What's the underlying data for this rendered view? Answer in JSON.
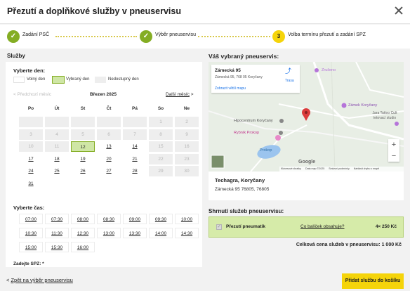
{
  "modal": {
    "title": "Přezutí a doplňkové služby v pneuservisu"
  },
  "steps": [
    {
      "number": "✓",
      "label": "Zadání PSČ",
      "state": "done"
    },
    {
      "number": "✓",
      "label": "Výběr pneuservisu",
      "state": "done"
    },
    {
      "number": "3",
      "label": "Volba termínu přezutí a zadání SPZ",
      "state": "current"
    }
  ],
  "services": {
    "title": "Služby",
    "day_label": "Vyberte den:",
    "legend": {
      "free": "Volný den",
      "selected": "Vybraný den",
      "unavailable": "Nedostupný den"
    },
    "calendar": {
      "prev": "Předchozí měsíc",
      "month": "Březen 2025",
      "next": "Další měsíc",
      "weekdays": [
        "Po",
        "Út",
        "St",
        "Čt",
        "Pá",
        "So",
        "Ne"
      ],
      "weeks": [
        [
          {
            "d": "",
            "s": "dis"
          },
          {
            "d": "",
            "s": "dis"
          },
          {
            "d": "",
            "s": "dis"
          },
          {
            "d": "",
            "s": "dis"
          },
          {
            "d": "",
            "s": "dis"
          },
          {
            "d": "1",
            "s": "dis"
          },
          {
            "d": "2",
            "s": "dis"
          }
        ],
        [
          {
            "d": "3",
            "s": "dis"
          },
          {
            "d": "4",
            "s": "dis"
          },
          {
            "d": "5",
            "s": "dis"
          },
          {
            "d": "6",
            "s": "dis"
          },
          {
            "d": "7",
            "s": "dis"
          },
          {
            "d": "8",
            "s": "dis"
          },
          {
            "d": "9",
            "s": "dis"
          }
        ],
        [
          {
            "d": "10",
            "s": "dis"
          },
          {
            "d": "11",
            "s": "dis"
          },
          {
            "d": "12",
            "s": "sel"
          },
          {
            "d": "13",
            "s": "ok"
          },
          {
            "d": "14",
            "s": "ok"
          },
          {
            "d": "15",
            "s": "dis"
          },
          {
            "d": "16",
            "s": "dis"
          }
        ],
        [
          {
            "d": "17",
            "s": "ok"
          },
          {
            "d": "18",
            "s": "ok"
          },
          {
            "d": "19",
            "s": "ok"
          },
          {
            "d": "20",
            "s": "ok"
          },
          {
            "d": "21",
            "s": "ok"
          },
          {
            "d": "22",
            "s": "dis"
          },
          {
            "d": "23",
            "s": "dis"
          }
        ],
        [
          {
            "d": "24",
            "s": "ok"
          },
          {
            "d": "25",
            "s": "ok"
          },
          {
            "d": "26",
            "s": "ok"
          },
          {
            "d": "27",
            "s": "ok"
          },
          {
            "d": "28",
            "s": "ok"
          },
          {
            "d": "29",
            "s": "dis"
          },
          {
            "d": "30",
            "s": "dis"
          }
        ],
        [
          {
            "d": "31",
            "s": "ok"
          }
        ]
      ]
    },
    "time_label": "Vyberte čas:",
    "times": [
      "07:00",
      "07:30",
      "08:00",
      "08:30",
      "09:00",
      "09:30",
      "10:00",
      "10:30",
      "11:30",
      "12:30",
      "13:00",
      "13:30",
      "14:00",
      "14:30",
      "15:00",
      "15:30",
      "16:00"
    ],
    "spz_label": "Zadejte SPZ: *"
  },
  "selected_service": {
    "title": "Váš vybraný pneuservis:",
    "map": {
      "popup_name": "Zámecká 95",
      "popup_address": "Zámecká 95, 768 05 Koryčany",
      "popup_link": "Zobrazit větší mapu",
      "route": "Trasa",
      "labels": {
        "hipo": "Hipocentrum Koryčany",
        "rybnik": "Rybník Prokop",
        "prokop": "Prokop",
        "zamek": "Zámek Koryčany",
        "tattoo": "Jara Tattoo Cult tetovací studio",
        "zruseno": "Zrušeno"
      },
      "attribution": [
        "Klávesové zkratky",
        "Data map ©2025",
        "Smluvní podmínky",
        "Nahlásit chybu v mapě"
      ],
      "google": "Google",
      "zoom_in": "+",
      "zoom_out": "−"
    },
    "name": "Techagra, Koryčany",
    "address": "Zámecká 95 76805, 76805"
  },
  "summary": {
    "title": "Shrnutí služeb pneuservisu:",
    "item_label": "Přezutí pneumatik",
    "item_link": "Co balíček obsahuje?",
    "item_price": "4× 250 Kč",
    "total": "Celková cena služeb v pneuservisu: 1 000 Kč"
  },
  "footer": {
    "back": "Zpět na výběr pneuservisu",
    "submit": "Přidat službu do košíku"
  },
  "colors": {
    "accent": "#f5d40a",
    "done": "#84ad23",
    "selected": "#cfe6a5",
    "summary_bg": "#d6eba9"
  }
}
